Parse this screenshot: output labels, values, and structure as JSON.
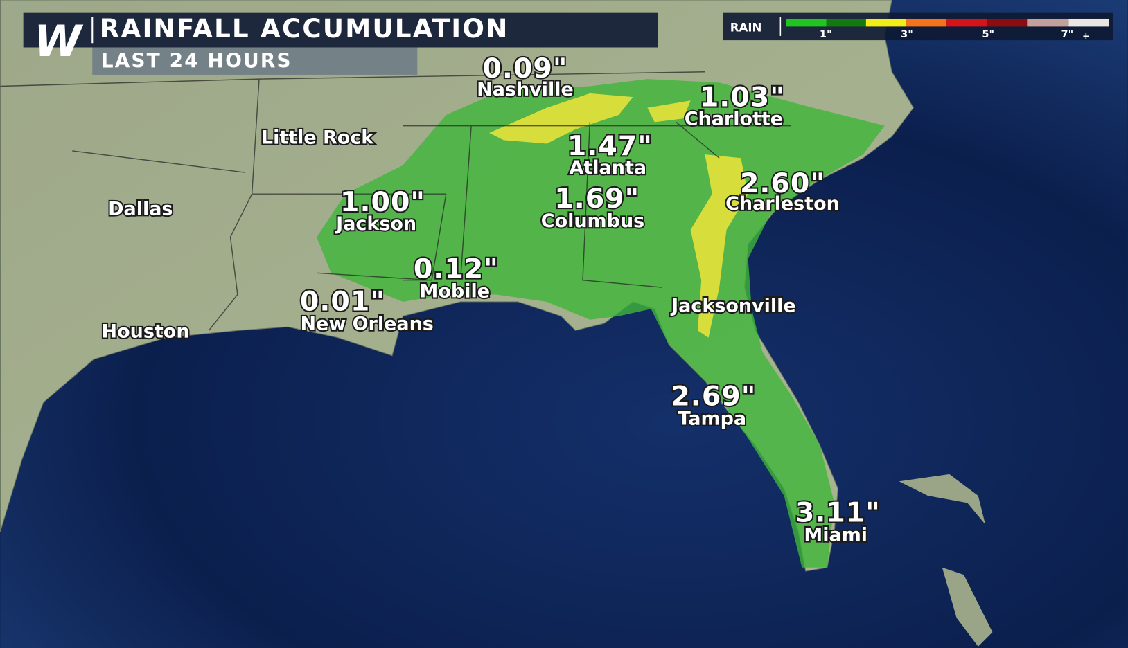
{
  "header": {
    "logo": "W",
    "title": "RAINFALL ACCUMULATION",
    "subtitle": "LAST 24 HOURS"
  },
  "legend": {
    "label": "RAIN",
    "ticks": [
      "1\"",
      "3\"",
      "5\"",
      "7\""
    ],
    "plus": "+"
  },
  "cities": [
    {
      "name": "Nashville",
      "amount": "0.09\""
    },
    {
      "name": "Charlotte",
      "amount": "1.03\""
    },
    {
      "name": "Atlanta",
      "amount": "1.47\""
    },
    {
      "name": "Charleston",
      "amount": "2.60\""
    },
    {
      "name": "Jackson",
      "amount": "1.00\""
    },
    {
      "name": "Columbus",
      "amount": "1.69\""
    },
    {
      "name": "Mobile",
      "amount": "0.12\""
    },
    {
      "name": "New Orleans",
      "amount": "0.01\""
    },
    {
      "name": "Tampa",
      "amount": "2.69\""
    },
    {
      "name": "Miami",
      "amount": "3.11\""
    },
    {
      "name": "Little Rock"
    },
    {
      "name": "Dallas"
    },
    {
      "name": "Houston"
    },
    {
      "name": "Jacksonville"
    }
  ]
}
